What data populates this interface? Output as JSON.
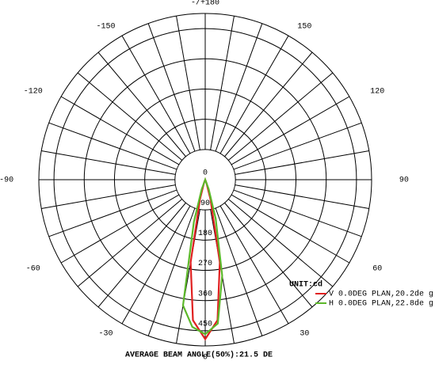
{
  "chart_data": {
    "type": "polar",
    "theta": [
      -30,
      -20,
      -15,
      -10,
      -5,
      0,
      5,
      10,
      15,
      20,
      30
    ],
    "series": [
      {
        "name": "V 0.0DEG PLAN,20.2de g",
        "color": "#e02020",
        "values": [
          0,
          10,
          60,
          250,
          420,
          475,
          420,
          250,
          60,
          10,
          0
        ]
      },
      {
        "name": "H 0.0DEG PLAN,22.8de g",
        "color": "#5cb82a",
        "values": [
          0,
          30,
          130,
          380,
          440,
          460,
          430,
          290,
          120,
          30,
          0
        ]
      }
    ],
    "rlim": [
      0,
      495
    ],
    "rticks": [
      0,
      90,
      180,
      270,
      360,
      450
    ],
    "thetaticks": [
      {
        "value": 180,
        "label": "-/+180"
      },
      150,
      120,
      90,
      60,
      30,
      0,
      -30,
      -60,
      -90,
      -120,
      -150
    ],
    "legend_title": "UNIT:cd",
    "legend": "bottom-right",
    "footer": "AVERAGE BEAM ANGLE(50%):21.5 DE"
  }
}
